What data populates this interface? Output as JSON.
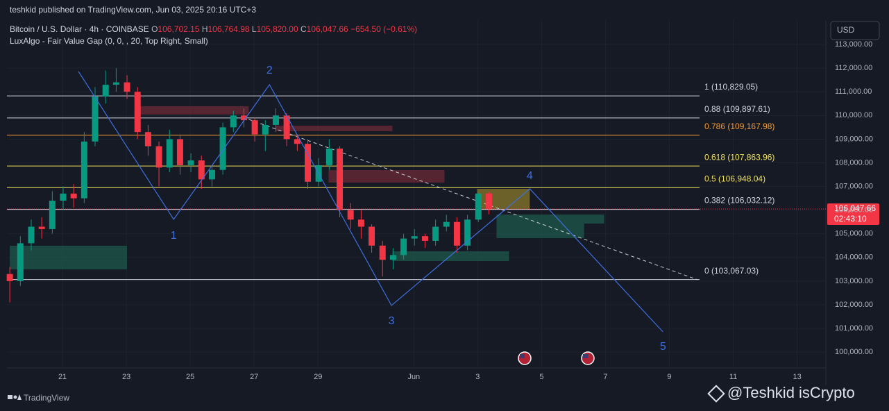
{
  "header": {
    "published": "teshkid published on TradingView.com, Jun 03, 2025 20:16 UTC+3",
    "symbol": "Bitcoin / U.S. Dollar · 4h · COINBASE",
    "ohlc": [
      [
        "O",
        "106,702.15"
      ],
      [
        "H",
        "106,764.98"
      ],
      [
        "L",
        "105,820.00"
      ],
      [
        "C",
        "106,047.66"
      ]
    ],
    "change": "−654.50 (−0.61%)",
    "indicator": "LuxAlgo - Fair Value Gap (0, 0, , 20, Top Right, Small)",
    "currency": "USD",
    "price_tag": "106,047.66",
    "countdown": "02:43:10",
    "footer": "TradingView",
    "watermark": "@Teshkid isCrypto"
  },
  "chart_data": {
    "type": "candlestick",
    "x": [
      19.35,
      19.68,
      20.02,
      20.35,
      20.68,
      21.02,
      21.35,
      21.68,
      22.02,
      22.35,
      22.68,
      23.02,
      23.35,
      23.68,
      24.02,
      24.35,
      24.68,
      25.02,
      25.35,
      25.68,
      26.02,
      26.35,
      26.68,
      27.02,
      27.35,
      27.68,
      28.02,
      28.35,
      28.68,
      29.02,
      29.35,
      29.68,
      30.02,
      30.35,
      30.68,
      31.02,
      31.35,
      31.68,
      32.02,
      32.35,
      32.68,
      33.02,
      33.35,
      33.68,
      34.02,
      34.35
    ],
    "open": [
      103300,
      103000,
      104600,
      105300,
      105200,
      106400,
      106700,
      106500,
      108900,
      110800,
      111300,
      111400,
      111000,
      109300,
      108700,
      107800,
      109000,
      107900,
      108100,
      107300,
      107700,
      109500,
      110000,
      109800,
      109200,
      109600,
      110000,
      109000,
      108800,
      107200,
      107900,
      108600,
      106000,
      105600,
      105300,
      104500,
      103900,
      104100,
      104800,
      104900,
      104700,
      105300,
      105500,
      104500,
      105600,
      106702.15
    ],
    "high": [
      103600,
      104900,
      105600,
      105700,
      106800,
      107000,
      107100,
      109300,
      111200,
      111900,
      112000,
      111700,
      111200,
      109600,
      108900,
      109400,
      109200,
      108400,
      108300,
      107900,
      109700,
      110200,
      110300,
      109900,
      109800,
      110300,
      110100,
      109200,
      109000,
      108200,
      109000,
      108700,
      106300,
      106000,
      105400,
      104700,
      104400,
      105000,
      105200,
      105000,
      105600,
      105800,
      105700,
      105800,
      106800,
      106764.98
    ],
    "low": [
      102100,
      102800,
      104300,
      104800,
      105000,
      106000,
      106100,
      106300,
      108700,
      110500,
      111000,
      110700,
      109000,
      108300,
      107000,
      107600,
      107500,
      107600,
      106900,
      107000,
      107500,
      109300,
      109500,
      108900,
      108500,
      109300,
      108700,
      108500,
      106900,
      107000,
      107700,
      105700,
      105200,
      104800,
      104200,
      103200,
      103500,
      103900,
      104500,
      104400,
      104500,
      105100,
      104200,
      104300,
      105500,
      105820
    ],
    "close": [
      103000,
      104600,
      105300,
      105200,
      106400,
      106700,
      106500,
      108900,
      110800,
      111300,
      111400,
      111000,
      109300,
      108700,
      107800,
      109000,
      107900,
      108100,
      107300,
      107700,
      109500,
      110000,
      109800,
      109200,
      109600,
      110000,
      109000,
      108800,
      107200,
      107900,
      108600,
      106000,
      105600,
      105300,
      104500,
      103900,
      104100,
      104800,
      104900,
      104700,
      105300,
      105500,
      104500,
      105600,
      106700,
      106047.66
    ],
    "up_color": "#089981",
    "down_color": "#f23645",
    "last_price": 106047.66,
    "xlim": [
      19.26,
      44.9
    ],
    "xticks": [
      {
        "value": 21,
        "label": "21"
      },
      {
        "value": 23,
        "label": "23"
      },
      {
        "value": 25,
        "label": "25"
      },
      {
        "value": 27,
        "label": "27"
      },
      {
        "value": 29,
        "label": "29"
      },
      {
        "value": 32,
        "label": "Jun"
      },
      {
        "value": 34,
        "label": "3"
      },
      {
        "value": 36,
        "label": "5"
      },
      {
        "value": 38,
        "label": "7"
      },
      {
        "value": 40,
        "label": "9"
      },
      {
        "value": 42,
        "label": "11"
      },
      {
        "value": 44,
        "label": "13"
      }
    ],
    "ylim": [
      99330,
      114000
    ],
    "yticks": [
      {
        "value": 100000,
        "label": "100,000.00"
      },
      {
        "value": 101000,
        "label": "101,000.00"
      },
      {
        "value": 102000,
        "label": "102,000.00"
      },
      {
        "value": 103000,
        "label": "103,000.00"
      },
      {
        "value": 104000,
        "label": "104,000.00"
      },
      {
        "value": 105000,
        "label": "105,000.00"
      },
      {
        "value": 106000,
        "label": "106,000.00"
      },
      {
        "value": 107000,
        "label": "107,000.00"
      },
      {
        "value": 108000,
        "label": "108,000.00"
      },
      {
        "value": 109000,
        "label": "109,000.00"
      },
      {
        "value": 110000,
        "label": "110,000.00"
      },
      {
        "value": 111000,
        "label": "111,000.00"
      },
      {
        "value": 112000,
        "label": "112,000.00"
      },
      {
        "value": 113000,
        "label": "113,000.00"
      }
    ],
    "grid": true,
    "levels": [
      {
        "label": "1 (110,829.05)",
        "value": 110829.05,
        "color": "#d1d4dc"
      },
      {
        "label": "0.88 (109,897.61)",
        "value": 109897.61,
        "color": "#d1d4dc"
      },
      {
        "label": "0.786 (109,167.98)",
        "value": 109167.98,
        "color": "#f39c32"
      },
      {
        "label": "0.618 (107,863.96)",
        "value": 107863.96,
        "color": "#f0e15a"
      },
      {
        "label": "0.5 (106,948.04)",
        "value": 106948.04,
        "color": "#f0e15a"
      },
      {
        "label": "0.382 (106,032.12)",
        "value": 106032.12,
        "color": "#d1d4dc"
      },
      {
        "label": "0 (103,067.03)",
        "value": 103067.03,
        "color": "#d1d4dc"
      }
    ],
    "zones": [
      {
        "x": [
          19.35,
          23.02
        ],
        "y": [
          104494,
          103497
        ],
        "color": "#1e5a4c"
      },
      {
        "x": [
          23.33,
          26.83
        ],
        "y": [
          110392,
          110040
        ],
        "color": "#6b2a36"
      },
      {
        "x": [
          27.67,
          31.33
        ],
        "y": [
          109570,
          109335
        ],
        "color": "#6b2a36"
      },
      {
        "x": [
          29.33,
          32.96
        ],
        "y": [
          107692,
          107164
        ],
        "color": "#6b2a36"
      },
      {
        "x": [
          31.33,
          34.98
        ],
        "y": [
          104259,
          103848
        ],
        "color": "#1e5a4c"
      },
      {
        "x": [
          34.59,
          37.96
        ],
        "y": [
          105815,
          105433
        ],
        "color": "#1e5a4c"
      },
      {
        "x": [
          34.59,
          37.33
        ],
        "y": [
          105433,
          104817
        ],
        "color": "#1e5a4c"
      },
      {
        "x": [
          33.98,
          35.63
        ],
        "y": [
          106900,
          106020
        ],
        "color": "#8a7a2a"
      }
    ],
    "wave": {
      "color": "#3f6fe0",
      "labels": [
        "1",
        "2",
        "3",
        "4",
        "5"
      ],
      "x": [
        21.5,
        24.48,
        27.48,
        31.3,
        35.63,
        39.8
      ],
      "y": [
        111858,
        105609,
        111301,
        101971,
        106900,
        100856
      ]
    },
    "trendline": {
      "x": [
        26.83,
        40.89
      ],
      "y": [
        109836,
        103056
      ],
      "color": "#c8ccd6"
    }
  }
}
